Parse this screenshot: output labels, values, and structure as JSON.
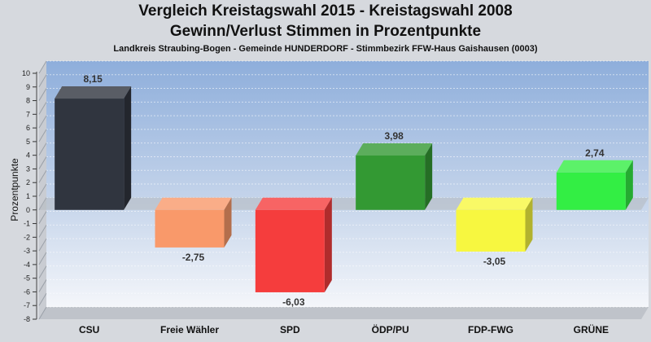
{
  "chart_data": {
    "type": "bar",
    "title": "Vergleich Kreistagswahl 2015 - Kreistagswahl 2008",
    "title2": "Gewinn/Verlust Stimmen in Prozentpunkte",
    "subtitle": "Landkreis Straubing-Bogen - Gemeinde HUNDERDORF - Stimmbezirk FFW-Haus Gaishausen (0003)",
    "ylabel": "Prozentpunkte",
    "ylim": [
      -8,
      10
    ],
    "yticks": [
      10,
      9,
      8,
      7,
      6,
      5,
      4,
      3,
      2,
      1,
      0,
      -1,
      -2,
      -3,
      -4,
      -5,
      -6,
      -7,
      -8
    ],
    "categories": [
      "CSU",
      "Freie Wähler",
      "SPD",
      "ÖDP/PU",
      "FDP-FWG",
      "GRÜNE"
    ],
    "values": [
      8.15,
      -2.75,
      -6.03,
      3.98,
      -3.05,
      2.74
    ],
    "value_labels": [
      "8,15",
      "-2,75",
      "-6,03",
      "3,98",
      "-3,05",
      "2,74"
    ],
    "colors": [
      "#30353f",
      "#f9996a",
      "#f53d3d",
      "#339933",
      "#f7f740",
      "#33ee44"
    ],
    "grid": true,
    "legend": "none"
  }
}
